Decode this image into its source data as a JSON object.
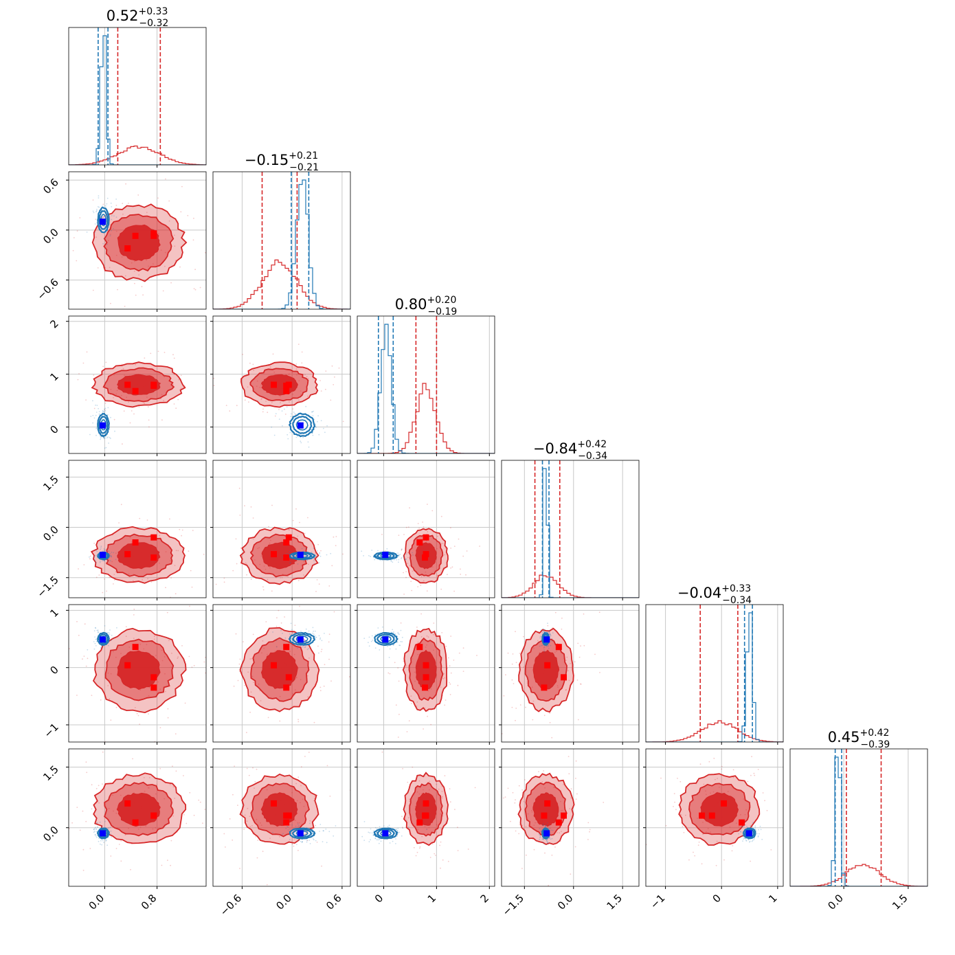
{
  "chart_data": {
    "type": "corner",
    "parameters": 6,
    "colors": {
      "red": "#d62728",
      "blue": "#1f77b4",
      "marker_red": "#ff0000",
      "marker_blue": "#0000ff"
    },
    "axes": [
      {
        "range": [
          -0.55,
          1.55
        ],
        "ticks": [
          0.0,
          0.8
        ],
        "tick_labels": [
          "0.0",
          "0.8"
        ]
      },
      {
        "range": [
          -0.95,
          0.7
        ],
        "ticks": [
          -0.6,
          0.0,
          0.6
        ],
        "tick_labels": [
          "−0.6",
          "0.0",
          "0.6"
        ]
      },
      {
        "range": [
          -0.5,
          2.1
        ],
        "ticks": [
          0,
          1,
          2
        ],
        "tick_labels": [
          "0",
          "1",
          "2"
        ]
      },
      {
        "range": [
          -2.2,
          2.0
        ],
        "ticks": [
          -1.5,
          0.0,
          1.5
        ],
        "tick_labels": [
          "−1.5",
          "0.0",
          "1.5"
        ]
      },
      {
        "range": [
          -1.35,
          1.1
        ],
        "ticks": [
          -1,
          0,
          1
        ],
        "tick_labels": [
          "−1",
          "0",
          "1"
        ]
      },
      {
        "range": [
          -1.25,
          1.95
        ],
        "ticks": [
          0.0,
          1.5
        ],
        "tick_labels": [
          "0.0",
          "1.5"
        ]
      }
    ],
    "row_axes": [
      null,
      {
        "range": [
          -0.95,
          0.7
        ],
        "ticks": [
          -0.6,
          0.0,
          0.6
        ],
        "tick_labels": [
          "−0.6",
          "0.0",
          "0.6"
        ]
      },
      {
        "range": [
          -0.5,
          2.1
        ],
        "ticks": [
          0,
          1,
          2
        ],
        "tick_labels": [
          "0",
          "1",
          "2"
        ]
      },
      {
        "range": [
          -2.1,
          2.0
        ],
        "ticks": [
          -1.5,
          0.0,
          1.5
        ],
        "tick_labels": [
          "−1.5",
          "0.0",
          "1.5"
        ]
      },
      {
        "range": [
          -1.3,
          1.1
        ],
        "ticks": [
          -1,
          0,
          1
        ],
        "tick_labels": [
          "−1",
          "0",
          "1"
        ]
      },
      {
        "range": [
          -1.45,
          1.95
        ],
        "ticks": [
          0.0,
          1.5
        ],
        "tick_labels": [
          "0.0",
          "1.5"
        ]
      }
    ],
    "titles": [
      {
        "median": "0.52",
        "plus": "+0.33",
        "minus": "−0.32"
      },
      {
        "median": "−0.15",
        "plus": "+0.21",
        "minus": "−0.21"
      },
      {
        "median": "0.80",
        "plus": "+0.20",
        "minus": "−0.19"
      },
      {
        "median": "−0.84",
        "plus": "+0.42",
        "minus": "−0.34"
      },
      {
        "median": "−0.04",
        "plus": "+0.33",
        "minus": "−0.34"
      },
      {
        "median": "0.45",
        "plus": "+0.42",
        "minus": "−0.39"
      }
    ],
    "series": [
      {
        "color": "red",
        "means": [
          0.52,
          -0.15,
          0.8,
          -0.84,
          -0.04,
          0.45
        ],
        "sds": [
          0.32,
          0.21,
          0.19,
          0.38,
          0.33,
          0.4
        ],
        "quantiles": [
          [
            0.2,
            0.85
          ],
          [
            -0.36,
            0.06
          ],
          [
            0.61,
            1.0
          ],
          [
            -1.18,
            -0.42
          ],
          [
            -0.38,
            0.29
          ],
          [
            0.06,
            0.87
          ]
        ],
        "markers": [
          [
            0.35,
            -0.22,
            0.8,
            -0.8,
            0.04,
            0.6
          ],
          [
            0.47,
            -0.07,
            0.68,
            -0.45,
            0.36,
            0.13
          ],
          [
            0.75,
            -0.04,
            0.8,
            -0.3,
            -0.17,
            0.3
          ],
          [
            0.75,
            -0.07,
            0.78,
            -0.9,
            -0.35,
            0.3
          ]
        ]
      },
      {
        "color": "blue",
        "means": [
          -0.02,
          0.12,
          0.04,
          -0.85,
          0.5,
          -0.14
        ],
        "sds": [
          0.04,
          0.07,
          0.1,
          0.05,
          0.05,
          0.06
        ],
        "quantiles": [
          [
            -0.1,
            0.05
          ],
          [
            -0.01,
            0.2
          ],
          [
            -0.1,
            0.18
          ],
          [
            -0.95,
            -0.75
          ],
          [
            0.41,
            0.55
          ],
          [
            -0.2,
            -0.05
          ]
        ],
        "markers": [
          [
            -0.03,
            0.1,
            0.03,
            -0.82,
            0.49,
            -0.14
          ]
        ]
      }
    ]
  }
}
